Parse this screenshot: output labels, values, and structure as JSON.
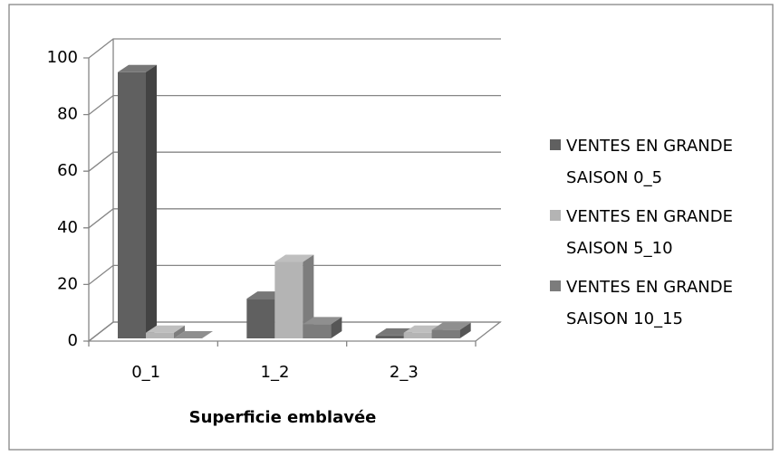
{
  "chart_data": {
    "type": "bar3d",
    "categories": [
      "0_1",
      "1_2",
      "2_3"
    ],
    "series": [
      {
        "name": "VENTES EN GRANDE SAISON 0_5",
        "color": "#606060",
        "values": [
          94,
          14,
          1
        ]
      },
      {
        "name": "VENTES EN GRANDE SAISON 5_10",
        "color": "#b4b4b4",
        "values": [
          2,
          27,
          2
        ]
      },
      {
        "name": "VENTES EN GRANDE SAISON 10_15",
        "color": "#7c7c7c",
        "values": [
          0,
          5,
          3
        ]
      }
    ],
    "xlabel": "Superficie emblavée",
    "ylim": [
      0,
      100
    ],
    "yticks": [
      0,
      20,
      40,
      60,
      80,
      100
    ],
    "grid": true,
    "legend": "right"
  }
}
